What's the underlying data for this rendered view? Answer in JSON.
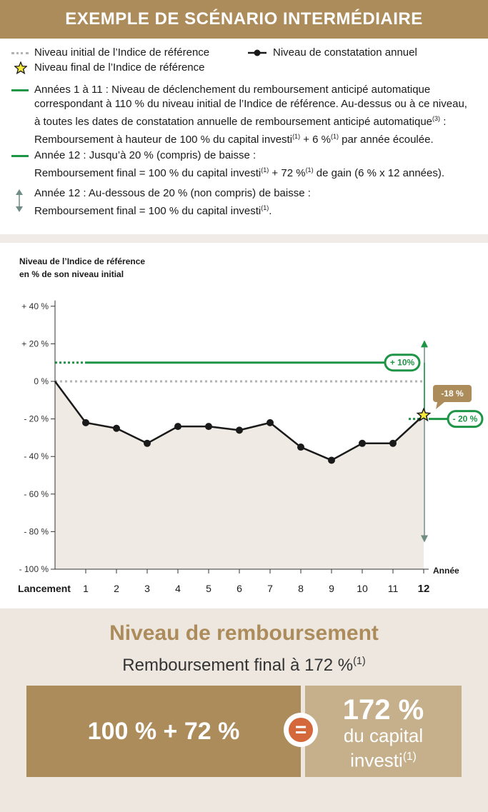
{
  "header": {
    "title": "EXEMPLE DE SCÉNARIO INTERMÉDIAIRE"
  },
  "legend": {
    "initial_level": "Niveau initial de l’Indice de référence",
    "annual_level": "Niveau de constatation annuel",
    "final_level": "Niveau final de l’Indice de référence",
    "item1_l1": "Années 1 à 11 : Niveau de déclenchement du remboursement anticipé automatique",
    "item1_l2": "correspondant à 110 % du niveau initial de l’Indice de référence. Au-dessus ou à ce niveau,",
    "item1_l3": "à toutes les dates de constatation annuelle de remboursement anticipé automatique",
    "item1_l3_sup": "(3)",
    "item1_l3_end": " :",
    "item1_l4": "Remboursement à hauteur de 100 % du capital investi",
    "item1_l4_sup": "(1)",
    "item1_l4_mid": " + 6 %",
    "item1_l4_sup2": "(1)",
    "item1_l4_end": " par année écoulée.",
    "item2_l1": "Année 12 : Jusqu’à 20 % (compris) de baisse :",
    "item2_l2": "Remboursement final = 100 % du capital investi",
    "item2_l2_sup": "(1)",
    "item2_l2_mid": " + 72 %",
    "item2_l2_sup2": "(1)",
    "item2_l2_end": " de gain (6 % x 12 années).",
    "item3_l1": "Année 12 : Au-dessous de 20 % (non compris) de baisse :",
    "item3_l2": "Remboursement final = 100 % du capital investi",
    "item3_l2_sup": "(1)",
    "item3_l2_end": "."
  },
  "chart_data": {
    "type": "line",
    "ylabel_l1": "Niveau de l’Indice de référence",
    "ylabel_l2": "en % de son niveau initial",
    "xlabel": "Année",
    "categories": [
      "Lancement",
      "1",
      "2",
      "3",
      "4",
      "5",
      "6",
      "7",
      "8",
      "9",
      "10",
      "11",
      "12"
    ],
    "yticks": [
      40,
      20,
      0,
      -20,
      -40,
      -60,
      -80,
      -100
    ],
    "ytick_labels": [
      "+ 40 %",
      "+ 20 %",
      "0 %",
      "- 20 %",
      "- 40 %",
      "- 60 %",
      "- 80 %",
      "- 100 %"
    ],
    "ylim": [
      -100,
      40
    ],
    "series": [
      {
        "values": [
          0,
          -22,
          -25,
          -33,
          -24,
          -24,
          -26,
          -22,
          -35,
          -42,
          -33,
          -33,
          -18
        ]
      }
    ],
    "autocall_level": 10,
    "autocall_label": "+ 10%",
    "barrier_level": -20,
    "barrier_label": "- 20 %",
    "final_label": "-18 %",
    "colors": {
      "series": "#1a1a1a",
      "green": "#1e9446",
      "grey": "#6f8c86",
      "fill": "#efeae4",
      "tan": "#ad8c5b",
      "star": "#f5e83a"
    }
  },
  "summary": {
    "title": "Niveau de remboursement",
    "subtitle": "Remboursement final à 172 %",
    "subtitle_sup": "(1)",
    "formula": "100 % + 72 %",
    "equals": "=",
    "result": "172 %",
    "result_l2": "du capital",
    "result_l3": "investi",
    "result_sup": "(1)"
  }
}
